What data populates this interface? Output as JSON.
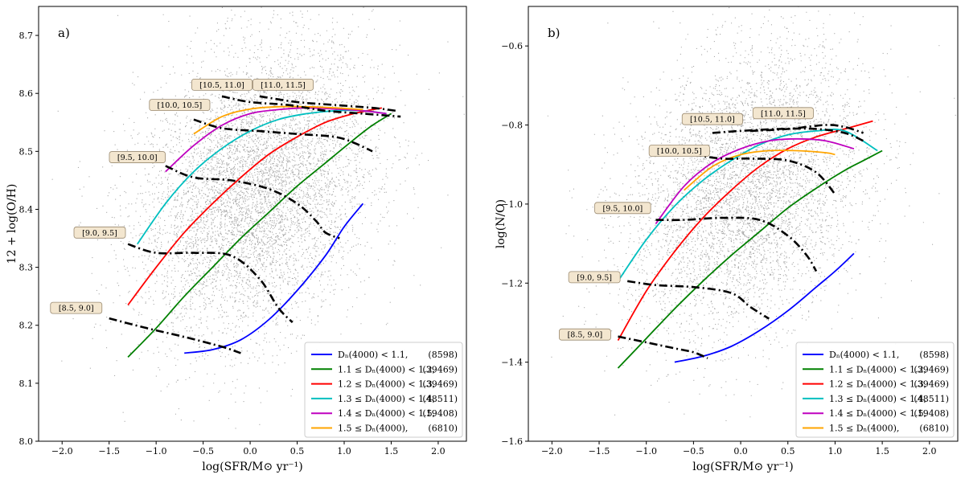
{
  "figure": {
    "panels": [
      {
        "id": "a",
        "panel_label": "a)",
        "xlabel": "log(SFR/M⊙ yr⁻¹)",
        "ylabel": "12 + log(O/H)",
        "xlim": [
          -2.25,
          2.3
        ],
        "ylim": [
          8.0,
          8.75
        ],
        "xticks": [
          -2.0,
          -1.5,
          -1.0,
          -0.5,
          0.0,
          0.5,
          1.0,
          1.5,
          2.0
        ],
        "xtick_labels": [
          "−2.0",
          "−1.5",
          "−1.0",
          "−0.5",
          "0.0",
          "0.5",
          "1.0",
          "1.5",
          "2.0"
        ],
        "yticks": [
          8.0,
          8.1,
          8.2,
          8.3,
          8.4,
          8.5,
          8.6,
          8.7
        ],
        "ytick_labels": [
          "8.0",
          "8.1",
          "8.2",
          "8.3",
          "8.4",
          "8.5",
          "8.6",
          "8.7"
        ]
      },
      {
        "id": "b",
        "panel_label": "b)",
        "xlabel": "log(SFR/M⊙ yr⁻¹)",
        "ylabel": "log(N/O)",
        "xlim": [
          -2.25,
          2.3
        ],
        "ylim": [
          -1.6,
          -0.5
        ],
        "xticks": [
          -2.0,
          -1.5,
          -1.0,
          -0.5,
          0.0,
          0.5,
          1.0,
          1.5,
          2.0
        ],
        "xtick_labels": [
          "−2.0",
          "−1.5",
          "−1.0",
          "−0.5",
          "0.0",
          "0.5",
          "1.0",
          "1.5",
          "2.0"
        ],
        "yticks": [
          -1.6,
          -1.4,
          -1.2,
          -1.0,
          -0.8,
          -0.6
        ],
        "ytick_labels": [
          "−1.6",
          "−1.4",
          "−1.2",
          "−1.0",
          "−0.8",
          "−0.6"
        ]
      }
    ]
  },
  "chart_data": [
    {
      "type": "line",
      "panel": "a",
      "title": "",
      "xlabel": "log(SFR/M⊙ yr⁻¹)",
      "ylabel": "12 + log(O/H)",
      "xlim": [
        -2.25,
        2.3
      ],
      "ylim": [
        8.0,
        8.75
      ],
      "background": "scatter of grey points (galaxy sample)",
      "legend_location": "lower right",
      "series": [
        {
          "name": "Dn(4000) < 1.1",
          "legend_left": "Dₙ(4000) < 1.1,",
          "legend_count": "(8598)",
          "color": "#0000ff",
          "x": [
            -0.7,
            -0.4,
            -0.1,
            0.2,
            0.5,
            0.8,
            1.0,
            1.2
          ],
          "y": [
            8.152,
            8.158,
            8.175,
            8.21,
            8.26,
            8.32,
            8.37,
            8.41
          ]
        },
        {
          "name": "1.1 ≤ Dn(4000) < 1.2",
          "legend_left": "1.1 ≤ Dₙ(4000) < 1.2,",
          "legend_count": "(39469)",
          "color": "#008000",
          "x": [
            -1.3,
            -1.0,
            -0.7,
            -0.4,
            -0.1,
            0.2,
            0.5,
            0.8,
            1.1,
            1.3,
            1.5
          ],
          "y": [
            8.145,
            8.195,
            8.25,
            8.3,
            8.35,
            8.395,
            8.44,
            8.48,
            8.52,
            8.545,
            8.565
          ]
        },
        {
          "name": "1.2 ≤ Dn(4000) < 1.3",
          "legend_left": "1.2 ≤ Dₙ(4000) < 1.3,",
          "legend_count": "(39469)",
          "color": "#ff0000",
          "x": [
            -1.3,
            -1.0,
            -0.7,
            -0.4,
            -0.1,
            0.2,
            0.5,
            0.8,
            1.1,
            1.4
          ],
          "y": [
            8.235,
            8.3,
            8.36,
            8.41,
            8.455,
            8.495,
            8.525,
            8.55,
            8.565,
            8.575
          ]
        },
        {
          "name": "1.3 ≤ Dn(4000) < 1.4",
          "legend_left": "1.3 ≤ Dₙ(4000) < 1.4,",
          "legend_count": "(48511)",
          "color": "#00bfbf",
          "x": [
            -1.2,
            -0.9,
            -0.6,
            -0.3,
            0.0,
            0.3,
            0.6,
            0.9,
            1.2,
            1.45
          ],
          "y": [
            8.34,
            8.41,
            8.465,
            8.505,
            8.535,
            8.555,
            8.565,
            8.57,
            8.57,
            8.565
          ]
        },
        {
          "name": "1.4 ≤ Dn(4000) < 1.5",
          "legend_left": "1.4 ≤ Dₙ(4000) < 1.5,",
          "legend_count": "(19408)",
          "color": "#bf00bf",
          "x": [
            -0.9,
            -0.6,
            -0.3,
            0.0,
            0.3,
            0.6,
            0.9,
            1.2,
            1.45
          ],
          "y": [
            8.465,
            8.51,
            8.545,
            8.565,
            8.572,
            8.575,
            8.573,
            8.57,
            8.565
          ]
        },
        {
          "name": "1.5 ≤ Dn(4000)",
          "legend_left": "1.5 ≤ Dₙ(4000),",
          "legend_count": "(6810)",
          "color": "#ffa500",
          "x": [
            -0.6,
            -0.3,
            0.0,
            0.3,
            0.6,
            0.9,
            1.2
          ],
          "y": [
            8.53,
            8.56,
            8.573,
            8.577,
            8.577,
            8.575,
            8.572
          ]
        }
      ],
      "mass_bins": [
        {
          "label": "[8.5, 9.0]",
          "x": [
            -1.5,
            -1.1,
            -0.7,
            -0.3,
            -0.1
          ],
          "y": [
            8.212,
            8.195,
            8.18,
            8.163,
            8.152
          ],
          "label_at": [
            -1.85,
            8.23
          ]
        },
        {
          "label": "[9.0, 9.5]",
          "x": [
            -1.3,
            -1.0,
            -0.6,
            -0.2,
            0.1,
            0.3,
            0.45
          ],
          "y": [
            8.34,
            8.325,
            8.325,
            8.32,
            8.28,
            8.23,
            8.205
          ],
          "label_at": [
            -1.6,
            8.36
          ]
        },
        {
          "label": "[9.5, 10.0]",
          "x": [
            -0.9,
            -0.6,
            -0.2,
            0.2,
            0.5,
            0.7,
            0.8,
            0.95
          ],
          "y": [
            8.475,
            8.455,
            8.45,
            8.435,
            8.41,
            8.38,
            8.36,
            8.35
          ],
          "label_at": [
            -1.2,
            8.49
          ]
        },
        {
          "label": "[10.0, 10.5]",
          "x": [
            -0.6,
            -0.3,
            0.1,
            0.5,
            0.9,
            1.1,
            1.3
          ],
          "y": [
            8.555,
            8.54,
            8.535,
            8.53,
            8.525,
            8.515,
            8.5
          ],
          "label_at": [
            -0.75,
            8.58
          ]
        },
        {
          "label": "[10.5, 11.0]",
          "x": [
            -0.3,
            0.0,
            0.4,
            0.8,
            1.2,
            1.6
          ],
          "y": [
            8.595,
            8.585,
            8.58,
            8.57,
            8.565,
            8.56
          ],
          "label_at": [
            -0.3,
            8.615
          ]
        },
        {
          "label": "[11.0, 11.5]",
          "x": [
            0.1,
            0.5,
            0.9,
            1.3,
            1.55
          ],
          "y": [
            8.595,
            8.585,
            8.58,
            8.575,
            8.57
          ],
          "label_at": [
            0.35,
            8.615
          ]
        }
      ]
    },
    {
      "type": "line",
      "panel": "b",
      "title": "",
      "xlabel": "log(SFR/M⊙ yr⁻¹)",
      "ylabel": "log(N/O)",
      "xlim": [
        -2.25,
        2.3
      ],
      "ylim": [
        -1.6,
        -0.5
      ],
      "background": "scatter of grey points (galaxy sample)",
      "legend_location": "lower right",
      "series": [
        {
          "name": "Dn(4000) < 1.1",
          "legend_left": "Dₙ(4000) < 1.1,",
          "legend_count": "(8598)",
          "color": "#0000ff",
          "x": [
            -0.7,
            -0.4,
            -0.1,
            0.2,
            0.5,
            0.8,
            1.0,
            1.2
          ],
          "y": [
            -1.4,
            -1.385,
            -1.36,
            -1.32,
            -1.27,
            -1.21,
            -1.17,
            -1.125
          ]
        },
        {
          "name": "1.1 ≤ Dn(4000) < 1.2",
          "legend_left": "1.1 ≤ Dₙ(4000) < 1.2,",
          "legend_count": "(39469)",
          "color": "#008000",
          "x": [
            -1.3,
            -1.0,
            -0.7,
            -0.4,
            -0.1,
            0.2,
            0.5,
            0.8,
            1.1,
            1.3,
            1.5
          ],
          "y": [
            -1.415,
            -1.34,
            -1.265,
            -1.195,
            -1.13,
            -1.07,
            -1.01,
            -0.96,
            -0.915,
            -0.89,
            -0.865
          ]
        },
        {
          "name": "1.2 ≤ Dn(4000) < 1.3",
          "legend_left": "1.2 ≤ Dₙ(4000) < 1.3,",
          "legend_count": "(39469)",
          "color": "#ff0000",
          "x": [
            -1.3,
            -1.0,
            -0.7,
            -0.4,
            -0.1,
            0.2,
            0.5,
            0.8,
            1.1,
            1.4
          ],
          "y": [
            -1.345,
            -1.22,
            -1.12,
            -1.035,
            -0.965,
            -0.905,
            -0.86,
            -0.83,
            -0.81,
            -0.79
          ]
        },
        {
          "name": "1.3 ≤ Dn(4000) < 1.4",
          "legend_left": "1.3 ≤ Dₙ(4000) < 1.4,",
          "legend_count": "(48511)",
          "color": "#00bfbf",
          "x": [
            -1.3,
            -1.0,
            -0.7,
            -0.4,
            -0.1,
            0.2,
            0.5,
            0.8,
            1.1,
            1.45
          ],
          "y": [
            -1.195,
            -1.09,
            -1.005,
            -0.94,
            -0.89,
            -0.85,
            -0.825,
            -0.815,
            -0.815,
            -0.865
          ]
        },
        {
          "name": "1.4 ≤ Dn(4000) < 1.5",
          "legend_left": "1.4 ≤ Dₙ(4000) < 1.5,",
          "legend_count": "(19408)",
          "color": "#bf00bf",
          "x": [
            -0.9,
            -0.6,
            -0.3,
            0.0,
            0.3,
            0.6,
            0.9,
            1.2
          ],
          "y": [
            -1.05,
            -0.955,
            -0.895,
            -0.86,
            -0.84,
            -0.835,
            -0.84,
            -0.86
          ]
        },
        {
          "name": "1.5 ≤ Dn(4000)",
          "legend_left": "1.5 ≤ Dₙ(4000),",
          "legend_count": "(6810)",
          "color": "#ffa500",
          "x": [
            -0.6,
            -0.3,
            0.0,
            0.3,
            0.6,
            0.9,
            1.0
          ],
          "y": [
            -0.965,
            -0.905,
            -0.875,
            -0.865,
            -0.865,
            -0.87,
            -0.875
          ]
        }
      ],
      "mass_bins": [
        {
          "label": "[8.5, 9.0]",
          "x": [
            -1.3,
            -1.0,
            -0.7,
            -0.5,
            -0.35
          ],
          "y": [
            -1.335,
            -1.35,
            -1.365,
            -1.375,
            -1.39
          ],
          "label_at": [
            -1.65,
            -1.33
          ]
        },
        {
          "label": "[9.0, 9.5]",
          "x": [
            -1.2,
            -0.9,
            -0.5,
            -0.1,
            0.1,
            0.3
          ],
          "y": [
            -1.195,
            -1.205,
            -1.21,
            -1.225,
            -1.26,
            -1.29
          ],
          "label_at": [
            -1.55,
            -1.185
          ]
        },
        {
          "label": "[9.5, 10.0]",
          "x": [
            -0.9,
            -0.6,
            -0.2,
            0.2,
            0.5,
            0.7,
            0.8
          ],
          "y": [
            -1.04,
            -1.04,
            -1.035,
            -1.04,
            -1.08,
            -1.13,
            -1.17
          ],
          "label_at": [
            -1.25,
            -1.01
          ]
        },
        {
          "label": "[10.0, 10.5]",
          "x": [
            -0.5,
            -0.2,
            0.1,
            0.5,
            0.8,
            1.0
          ],
          "y": [
            -0.875,
            -0.885,
            -0.885,
            -0.89,
            -0.92,
            -0.975
          ],
          "label_at": [
            -0.65,
            -0.865
          ]
        },
        {
          "label": "[10.5, 11.0]",
          "x": [
            -0.3,
            0.0,
            0.4,
            0.8,
            1.1,
            1.3
          ],
          "y": [
            -0.82,
            -0.815,
            -0.81,
            -0.81,
            -0.82,
            -0.84
          ],
          "label_at": [
            -0.3,
            -0.785
          ]
        },
        {
          "label": "[11.0, 11.5]",
          "x": [
            0.1,
            0.5,
            0.9,
            1.1,
            1.3
          ],
          "y": [
            -0.815,
            -0.81,
            -0.8,
            -0.805,
            -0.82
          ],
          "label_at": [
            0.45,
            -0.77
          ]
        }
      ]
    }
  ]
}
